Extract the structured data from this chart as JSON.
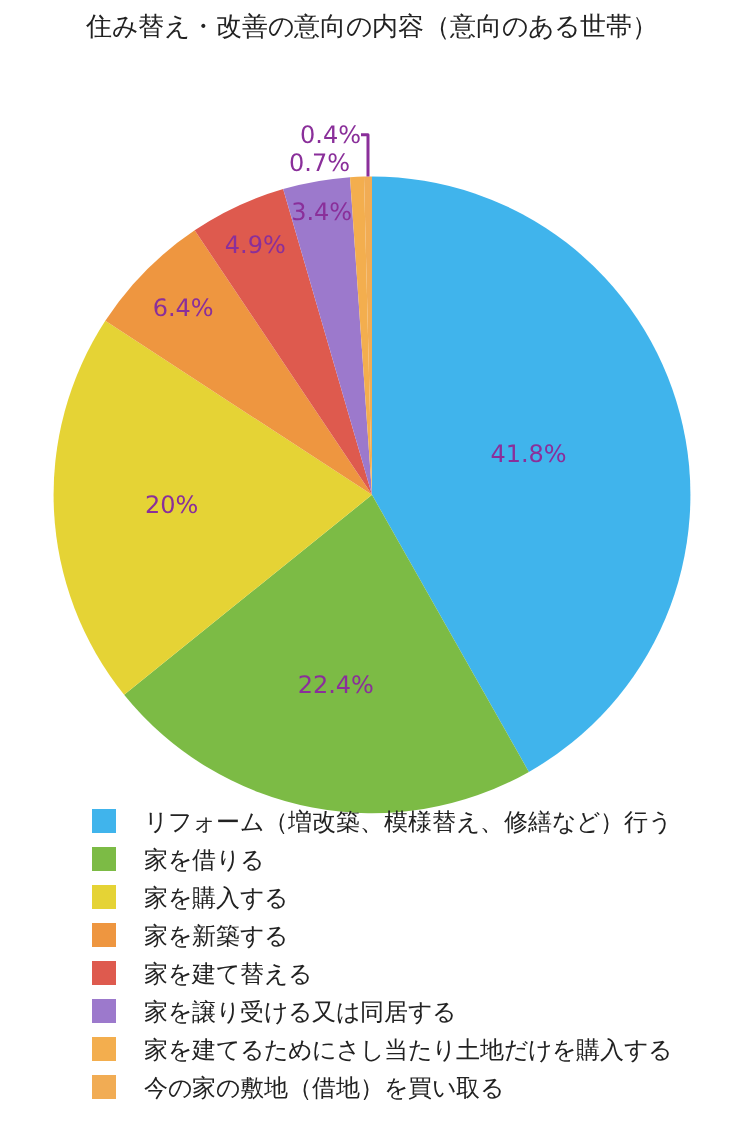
{
  "chart_data": {
    "type": "pie",
    "title": "住み替え・改善の意向の内容（意向のある世帯）",
    "categories": [
      "リフォーム（増改築、模様替え、修繕など）行う",
      "家を借りる",
      "家を購入する",
      "家を新築する",
      "家を建て替える",
      "家を譲り受ける又は同居する",
      "家を建てるためにさし当たり土地だけを購入する",
      "今の家の敷地（借地）を買い取る"
    ],
    "values": [
      41.8,
      22.4,
      20,
      6.4,
      4.9,
      3.4,
      0.7,
      0.4
    ],
    "colors": [
      "#40b4ec",
      "#7cbb45",
      "#e5d335",
      "#ee9640",
      "#de5a4e",
      "#9c79cc",
      "#f3ae4e",
      "#f1ac54"
    ],
    "value_labels": [
      "41.8%",
      "22.4%",
      "20%",
      "6.4%",
      "4.9%",
      "3.4%",
      "0.7%",
      "0.4%"
    ],
    "legend": "bottom"
  }
}
